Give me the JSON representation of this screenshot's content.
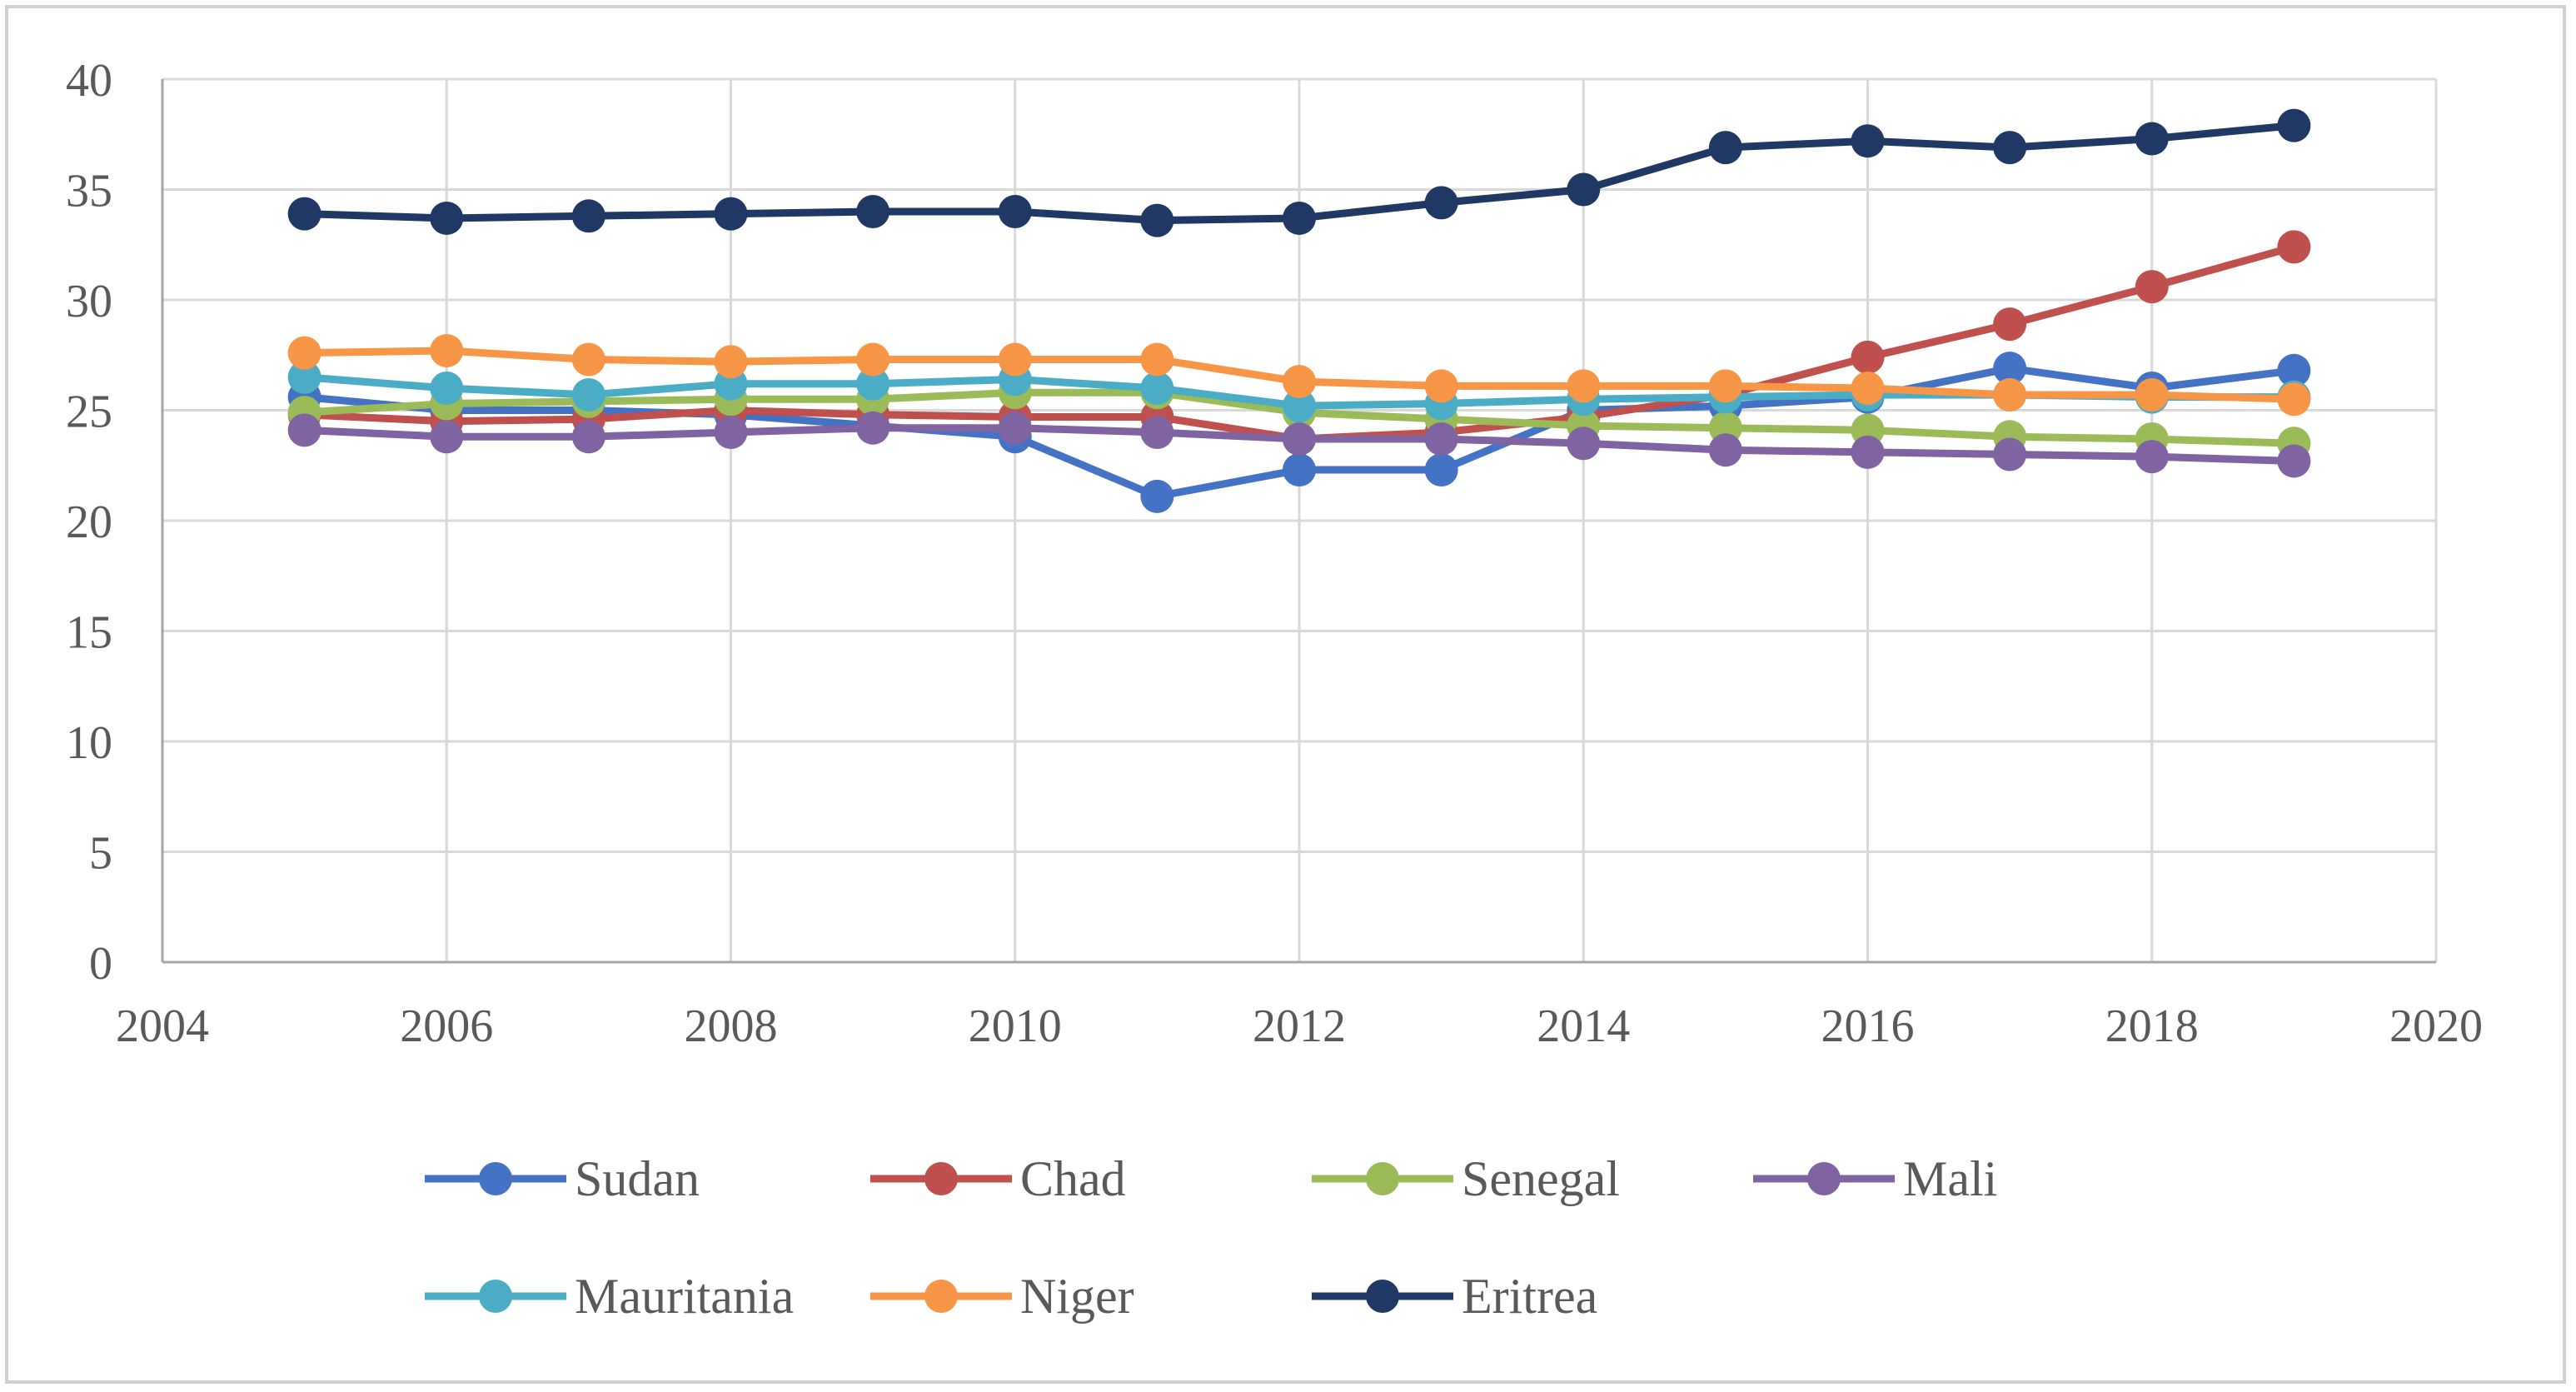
{
  "chart_data": {
    "type": "line",
    "title": "",
    "xlabel": "",
    "ylabel": "",
    "xlim": [
      2004,
      2020
    ],
    "ylim": [
      0,
      40
    ],
    "x_ticks": [
      2004,
      2006,
      2008,
      2010,
      2012,
      2014,
      2016,
      2018,
      2020
    ],
    "y_ticks": [
      0,
      5,
      10,
      15,
      20,
      25,
      30,
      35,
      40
    ],
    "grid": true,
    "legend_position": "bottom",
    "x": [
      2005,
      2006,
      2007,
      2008,
      2009,
      2010,
      2011,
      2012,
      2013,
      2014,
      2015,
      2016,
      2017,
      2018,
      2019
    ],
    "series": [
      {
        "name": "Sudan",
        "color": "#4472C4",
        "values": [
          25.6,
          25.0,
          25.0,
          24.8,
          24.3,
          23.8,
          21.1,
          22.3,
          22.3,
          25.0,
          25.2,
          25.6,
          26.9,
          26.0,
          26.8
        ]
      },
      {
        "name": "Chad",
        "color": "#C0504D",
        "values": [
          24.8,
          24.5,
          24.6,
          25.0,
          24.8,
          24.7,
          24.7,
          23.7,
          24.0,
          24.7,
          25.7,
          27.4,
          28.9,
          30.6,
          32.4
        ]
      },
      {
        "name": "Senegal",
        "color": "#9BBB59",
        "values": [
          24.9,
          25.3,
          25.4,
          25.5,
          25.5,
          25.8,
          25.8,
          24.9,
          24.6,
          24.3,
          24.2,
          24.1,
          23.8,
          23.7,
          23.5
        ]
      },
      {
        "name": "Mali",
        "color": "#8064A2",
        "values": [
          24.1,
          23.8,
          23.8,
          24.0,
          24.2,
          24.2,
          24.0,
          23.7,
          23.7,
          23.5,
          23.2,
          23.1,
          23.0,
          22.9,
          22.7
        ]
      },
      {
        "name": "Mauritania",
        "color": "#4BACC6",
        "values": [
          26.5,
          26.0,
          25.7,
          26.2,
          26.2,
          26.4,
          26.0,
          25.2,
          25.3,
          25.5,
          25.6,
          25.7,
          25.7,
          25.6,
          25.6
        ]
      },
      {
        "name": "Niger",
        "color": "#F79646",
        "values": [
          27.6,
          27.7,
          27.3,
          27.2,
          27.3,
          27.3,
          27.3,
          26.3,
          26.1,
          26.1,
          26.1,
          26.0,
          25.7,
          25.7,
          25.5
        ]
      },
      {
        "name": "Eritrea",
        "color": "#1F3864",
        "values": [
          33.9,
          33.7,
          33.8,
          33.9,
          34.0,
          34.0,
          33.6,
          33.7,
          34.4,
          35.0,
          36.9,
          37.2,
          36.9,
          37.3,
          37.9
        ]
      }
    ]
  }
}
